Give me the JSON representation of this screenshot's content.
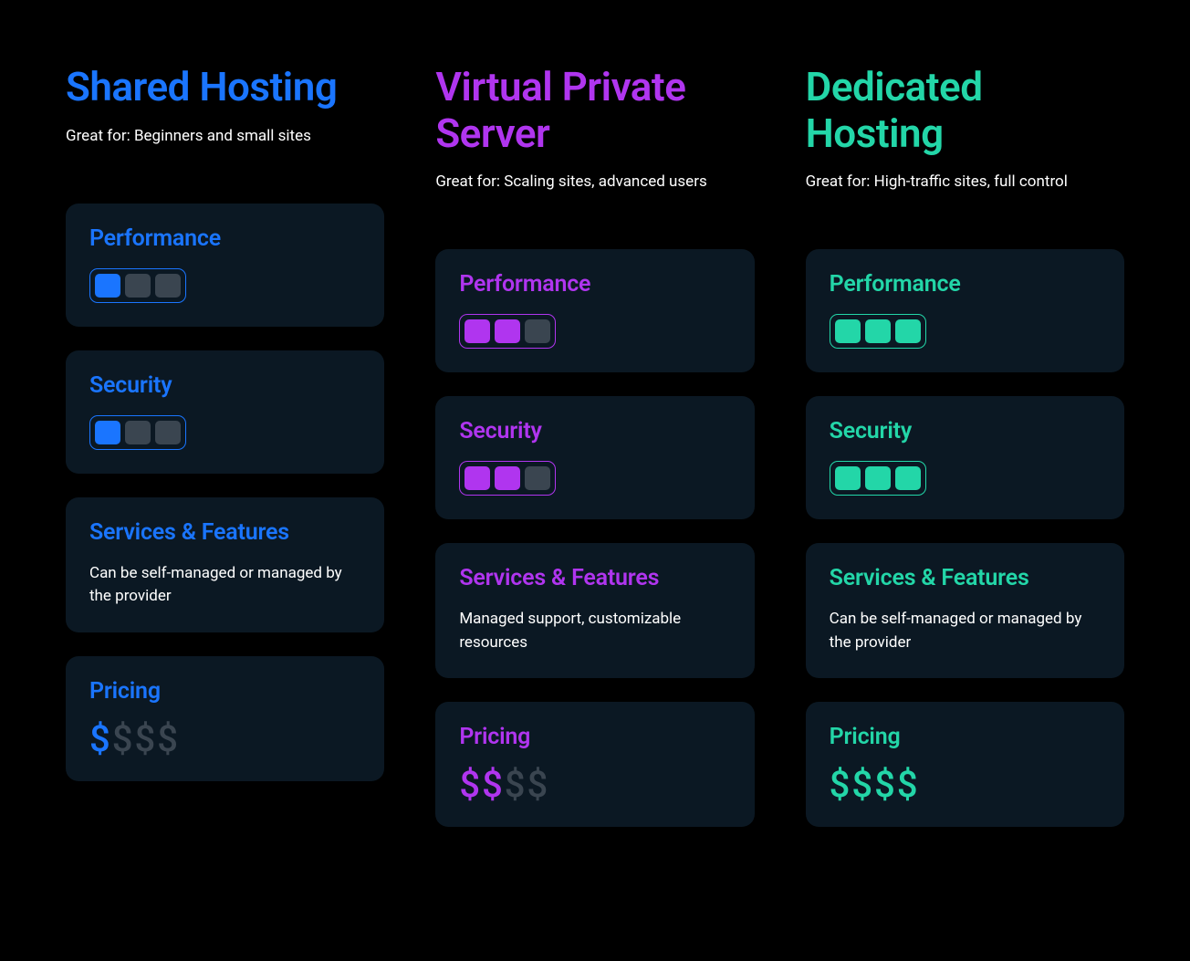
{
  "background_color": "#000000",
  "card_background": "#0b1823",
  "inactive_color": "#3a4550",
  "labels": {
    "great_for_prefix": "Great for: ",
    "performance": "Performance",
    "security": "Security",
    "services": "Services & Features",
    "pricing": "Pricing"
  },
  "columns": [
    {
      "id": "shared",
      "title": "Shared Hosting",
      "great_for": "Beginners and small sites",
      "accent_color": "#1a75ff",
      "performance": {
        "filled": 1,
        "total": 3
      },
      "security": {
        "filled": 1,
        "total": 3
      },
      "services_text": "Can be self-managed or managed by the provider",
      "pricing": {
        "filled": 1,
        "total": 4
      }
    },
    {
      "id": "vps",
      "title": "Virtual Private Server",
      "great_for": "Scaling sites, advanced users",
      "accent_color": "#b035ef",
      "performance": {
        "filled": 2,
        "total": 3
      },
      "security": {
        "filled": 2,
        "total": 3
      },
      "services_text": "Managed support, customizable resources",
      "pricing": {
        "filled": 2,
        "total": 4
      }
    },
    {
      "id": "dedicated",
      "title": "Dedicated Hosting",
      "great_for": "High-traffic sites, full control",
      "accent_color": "#23d6a8",
      "performance": {
        "filled": 3,
        "total": 3
      },
      "security": {
        "filled": 3,
        "total": 3
      },
      "services_text": "Can be self-managed or managed by the provider",
      "pricing": {
        "filled": 4,
        "total": 4
      }
    }
  ]
}
